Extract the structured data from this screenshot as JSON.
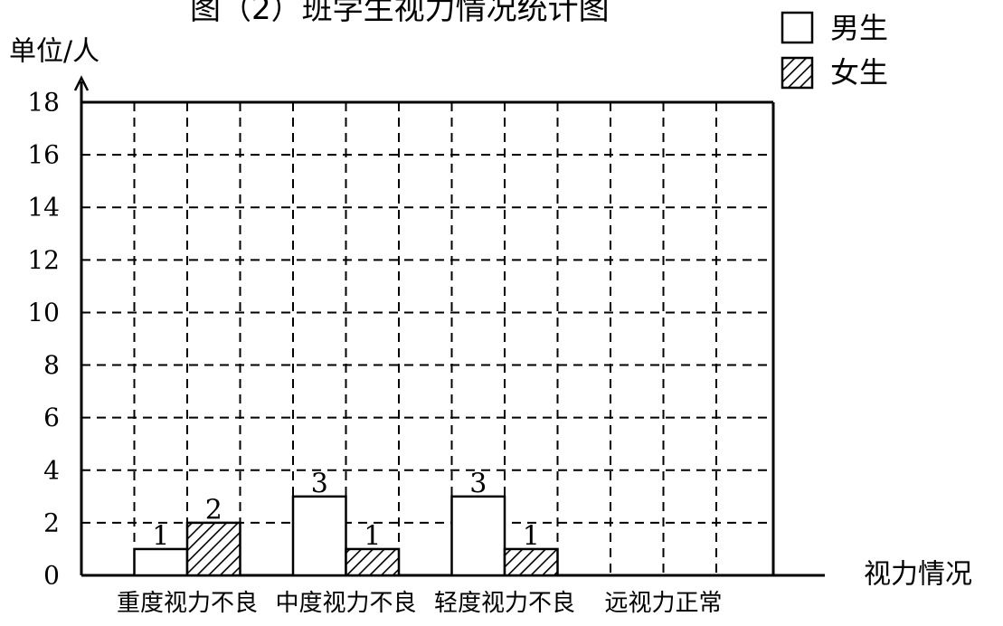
{
  "chart_data": {
    "type": "bar",
    "title": "图（2）班学生视力情况统计图",
    "ylabel": "单位/人",
    "xlabel": "视力情况",
    "ylim": [
      0,
      18
    ],
    "yticks": [
      0,
      2,
      4,
      6,
      8,
      10,
      12,
      14,
      16,
      18
    ],
    "categories": [
      "重度视力不良",
      "中度视力不良",
      "轻度视力不良",
      "远视力正常"
    ],
    "series": [
      {
        "name": "男生",
        "pattern": "hollow",
        "values": [
          1,
          3,
          3,
          null
        ]
      },
      {
        "name": "女生",
        "pattern": "hatched",
        "values": [
          2,
          1,
          1,
          null
        ]
      }
    ],
    "grid": true,
    "legend": "top-right"
  }
}
